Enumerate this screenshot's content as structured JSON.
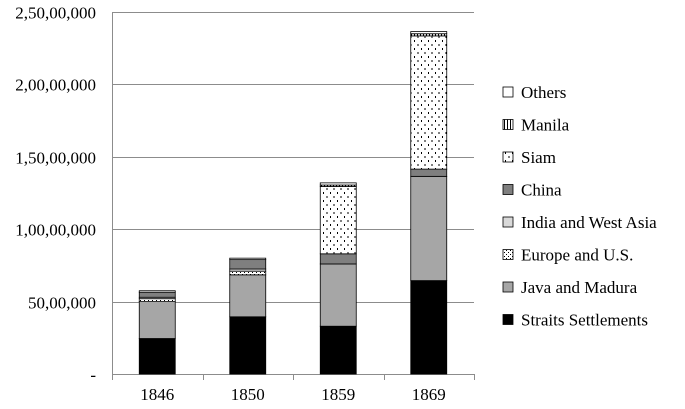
{
  "chart_data": {
    "type": "bar",
    "stacked": true,
    "categories": [
      "1846",
      "1850",
      "1859",
      "1869"
    ],
    "ylim": [
      0,
      25000000
    ],
    "yticks": [
      0,
      5000000,
      10000000,
      15000000,
      20000000,
      25000000
    ],
    "ytick_labels": [
      "-",
      "50,00,000",
      "1,00,00,000",
      "1,50,00,000",
      "2,00,00,000",
      "2,50,00,000"
    ],
    "grid": true,
    "legend_position": "right",
    "series": [
      {
        "name": "Straits Settlements",
        "values": [
          2450000,
          3950000,
          3300000,
          6450000
        ],
        "color": "#000000",
        "pattern": "solid"
      },
      {
        "name": "Java and Madura",
        "values": [
          2550000,
          2900000,
          4300000,
          7200000
        ],
        "color": "#a6a6a6",
        "pattern": "solid"
      },
      {
        "name": "Europe and U.S.",
        "values": [
          200000,
          250000,
          0,
          0
        ],
        "color": "#ffffff",
        "pattern": "dotted-grid"
      },
      {
        "name": "India and West Asia",
        "values": [
          100000,
          150000,
          0,
          0
        ],
        "color": "#d9d9d9",
        "pattern": "solid"
      },
      {
        "name": "China",
        "values": [
          350000,
          650000,
          700000,
          500000
        ],
        "color": "#7f7f7f",
        "pattern": "solid"
      },
      {
        "name": "Siam",
        "values": [
          0,
          0,
          4650000,
          9200000
        ],
        "color": "#ffffff",
        "pattern": "dashes"
      },
      {
        "name": "Manila",
        "values": [
          0,
          0,
          100000,
          150000
        ],
        "color": "#ffffff",
        "pattern": "vertical-lines"
      },
      {
        "name": "Others",
        "values": [
          100000,
          100000,
          150000,
          150000
        ],
        "color": "#ffffff",
        "pattern": "solid"
      }
    ],
    "legend_order": [
      "Others",
      "Manila",
      "Siam",
      "China",
      "India and West Asia",
      "Europe and U.S.",
      "Java and Madura",
      "Straits Settlements"
    ]
  }
}
